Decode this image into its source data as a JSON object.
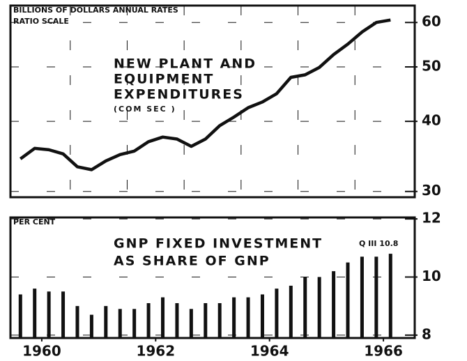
{
  "chart_data": [
    {
      "type": "line",
      "unit_label": "BILLIONS OF DOLLARS  ANNUAL RATES",
      "scale_label": "RATIO SCALE",
      "title": [
        "NEW PLANT AND",
        "EQUIPMENT",
        "EXPENDITURES"
      ],
      "subtitle": "(COM   SEC )",
      "log_scale": true,
      "color": "#111111",
      "x": [
        1960.125,
        1960.375,
        1960.625,
        1960.875,
        1961.125,
        1961.375,
        1961.625,
        1961.875,
        1962.125,
        1962.375,
        1962.625,
        1962.875,
        1963.125,
        1963.375,
        1963.625,
        1963.875,
        1964.125,
        1964.375,
        1964.625,
        1964.875,
        1965.125,
        1965.375,
        1965.625,
        1965.875,
        1966.125,
        1966.375,
        1966.625
      ],
      "values": [
        34.3,
        35.8,
        35.6,
        35.0,
        33.2,
        32.8,
        34.0,
        34.9,
        35.4,
        36.8,
        37.5,
        37.2,
        36.1,
        37.2,
        39.3,
        40.7,
        42.3,
        43.3,
        44.8,
        47.9,
        48.4,
        49.9,
        52.6,
        54.9,
        57.7,
        60.0,
        60.6
      ],
      "xlim": [
        1959.95,
        1967.05
      ],
      "xgrid": [
        1961,
        1962,
        1963,
        1964,
        1965,
        1966
      ],
      "ylim": [
        29.3,
        64.3
      ],
      "yticks": [
        30,
        40,
        50,
        60
      ],
      "grid": true
    },
    {
      "type": "bar",
      "unit_label": "PER CENT",
      "title": [
        "GNP FIXED INVESTMENT",
        "AS SHARE OF GNP"
      ],
      "annotation": "Q III 10.8",
      "color": "#111111",
      "x": [
        1960.125,
        1960.375,
        1960.625,
        1960.875,
        1961.125,
        1961.375,
        1961.625,
        1961.875,
        1962.125,
        1962.375,
        1962.625,
        1962.875,
        1963.125,
        1963.375,
        1963.625,
        1963.875,
        1964.125,
        1964.375,
        1964.625,
        1964.875,
        1965.125,
        1965.375,
        1965.625,
        1965.875,
        1966.125,
        1966.375,
        1966.625
      ],
      "values": [
        9.4,
        9.6,
        9.5,
        9.5,
        9.0,
        8.7,
        9.0,
        8.9,
        8.9,
        9.1,
        9.3,
        9.1,
        8.9,
        9.1,
        9.1,
        9.3,
        9.3,
        9.4,
        9.6,
        9.7,
        10.0,
        10.0,
        10.2,
        10.5,
        10.7,
        10.7,
        10.8
      ],
      "xlim": [
        1959.95,
        1967.05
      ],
      "xticks": [
        {
          "value": 1960.5,
          "label": "1960"
        },
        {
          "value": 1962.5,
          "label": "1962"
        },
        {
          "value": 1964.5,
          "label": "1964"
        },
        {
          "value": 1966.5,
          "label": "1966"
        }
      ],
      "ylim": [
        7.9,
        12.05
      ],
      "yticks": [
        8,
        10,
        12
      ],
      "grid": true
    }
  ]
}
